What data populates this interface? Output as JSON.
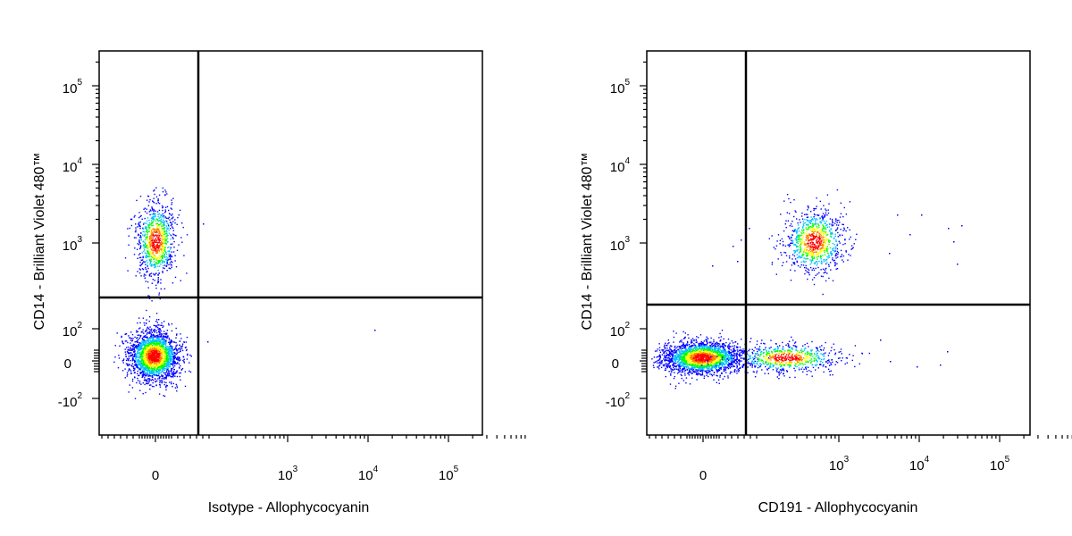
{
  "chart_data": [
    {
      "type": "scatter",
      "subtype": "flow-cytometry-density-dot-plot",
      "xlabel": "Isotype - Allophycocyanin",
      "ylabel": "CD14 - Brilliant Violet 480™",
      "x_scale": "biexponential",
      "y_scale": "biexponential",
      "x_ticks": [
        {
          "base": "0",
          "exp": ""
        },
        {
          "base": "10",
          "exp": "3"
        },
        {
          "base": "10",
          "exp": "4"
        },
        {
          "base": "10",
          "exp": "5"
        }
      ],
      "y_ticks": [
        {
          "base": "10",
          "exp": "5"
        },
        {
          "base": "10",
          "exp": "4"
        },
        {
          "base": "10",
          "exp": "3"
        },
        {
          "base": "10",
          "exp": "2"
        },
        {
          "base": "0",
          "exp": ""
        },
        {
          "base": "-10",
          "exp": "2"
        }
      ],
      "gate_value_ranges_approx": {
        "x": 700,
        "y": 220
      },
      "populations": [
        {
          "name": "",
          "x_center": 0,
          "y_center": 1000,
          "count_est": 900
        },
        {
          "name": "",
          "x_center": 0,
          "y_center": 0,
          "count_est": 2200
        }
      ],
      "density_colors": [
        "#0000ff",
        "#00c0ff",
        "#00ff00",
        "#ffff00",
        "#ff8000",
        "#ff0000"
      ],
      "grid": false,
      "legend": "none"
    },
    {
      "type": "scatter",
      "subtype": "flow-cytometry-density-dot-plot",
      "xlabel": "CD191 - Allophycocyanin",
      "ylabel": "CD14 - Brilliant Violet 480™",
      "x_scale": "biexponential",
      "y_scale": "biexponential",
      "x_ticks": [
        {
          "base": "0",
          "exp": ""
        },
        {
          "base": "10",
          "exp": "3"
        },
        {
          "base": "10",
          "exp": "4"
        },
        {
          "base": "10",
          "exp": "5"
        }
      ],
      "y_ticks": [
        {
          "base": "10",
          "exp": "5"
        },
        {
          "base": "10",
          "exp": "4"
        },
        {
          "base": "10",
          "exp": "3"
        },
        {
          "base": "10",
          "exp": "2"
        },
        {
          "base": "0",
          "exp": ""
        },
        {
          "base": "-10",
          "exp": "2"
        }
      ],
      "gate_value_ranges_approx": {
        "x": 400,
        "y": 180
      },
      "populations": [
        {
          "name": "",
          "x_center": 700,
          "y_center": 1000,
          "count_est": 900
        },
        {
          "name": "",
          "x_center": 0,
          "y_center": 10,
          "count_est": 2200
        },
        {
          "name": "",
          "x_center": 300,
          "y_center": 10,
          "count_est": 700
        }
      ],
      "density_colors": [
        "#0000ff",
        "#00c0ff",
        "#00ff00",
        "#ffff00",
        "#ff8000",
        "#ff0000"
      ],
      "grid": false,
      "legend": "none"
    }
  ]
}
